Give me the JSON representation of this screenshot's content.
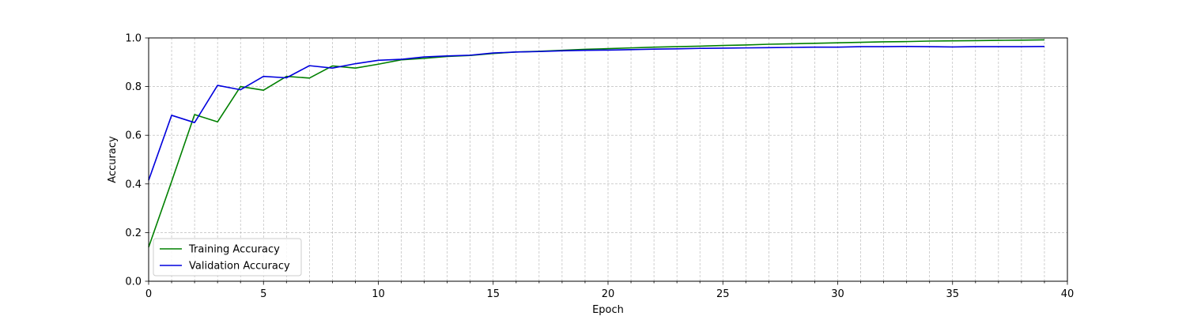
{
  "chart_data": {
    "type": "line",
    "title": "",
    "xlabel": "Epoch",
    "ylabel": "Accuracy",
    "xlim": [
      0,
      40
    ],
    "ylim": [
      0,
      1.0
    ],
    "x_ticks": [
      0,
      5,
      10,
      15,
      20,
      25,
      30,
      35,
      40
    ],
    "x_tick_labels": [
      "0",
      "5",
      "10",
      "15",
      "20",
      "25",
      "30",
      "35",
      "40"
    ],
    "y_ticks": [
      0,
      0.2,
      0.4,
      0.6,
      0.8,
      1.0
    ],
    "y_tick_labels": [
      "0.0",
      "0.2",
      "0.4",
      "0.6",
      "0.8",
      "1.0"
    ],
    "grid": true,
    "legend_position": "lower-left",
    "x": [
      0,
      1,
      2,
      3,
      4,
      5,
      6,
      7,
      8,
      9,
      10,
      11,
      12,
      13,
      14,
      15,
      16,
      17,
      18,
      19,
      20,
      21,
      22,
      23,
      24,
      25,
      26,
      27,
      28,
      29,
      30,
      31,
      32,
      33,
      34,
      35,
      36,
      37,
      38,
      39
    ],
    "series": [
      {
        "name": "Training Accuracy",
        "color": "#008000",
        "values": [
          0.14,
          0.41,
          0.685,
          0.655,
          0.8,
          0.785,
          0.842,
          0.835,
          0.885,
          0.876,
          0.892,
          0.91,
          0.916,
          0.924,
          0.928,
          0.936,
          0.942,
          0.945,
          0.949,
          0.953,
          0.956,
          0.959,
          0.962,
          0.964,
          0.966,
          0.969,
          0.971,
          0.974,
          0.976,
          0.978,
          0.98,
          0.982,
          0.984,
          0.985,
          0.987,
          0.988,
          0.989,
          0.99,
          0.991,
          0.992
        ]
      },
      {
        "name": "Validation Accuracy",
        "color": "#0000dd",
        "values": [
          0.415,
          0.682,
          0.652,
          0.805,
          0.787,
          0.842,
          0.836,
          0.886,
          0.876,
          0.894,
          0.908,
          0.912,
          0.922,
          0.926,
          0.929,
          0.938,
          0.942,
          0.944,
          0.947,
          0.949,
          0.95,
          0.952,
          0.954,
          0.955,
          0.957,
          0.958,
          0.959,
          0.96,
          0.961,
          0.962,
          0.962,
          0.964,
          0.964,
          0.965,
          0.964,
          0.963,
          0.964,
          0.964,
          0.964,
          0.965
        ]
      }
    ]
  }
}
